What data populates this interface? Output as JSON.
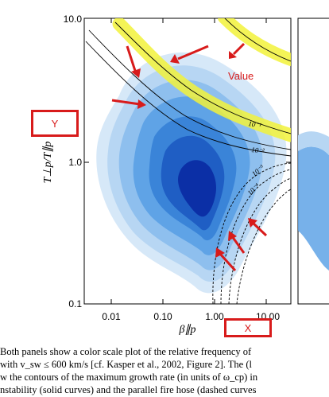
{
  "chart_data": {
    "type": "heatmap",
    "x_scale": "log",
    "y_scale": "log",
    "xlim": [
      0.003,
      30
    ],
    "ylim": [
      0.1,
      10
    ],
    "x_tick_labels": [
      "0.01",
      "0.10",
      "1.00",
      "10.00"
    ],
    "y_tick_labels": [
      "0.1",
      "1.0",
      "10.0"
    ],
    "xlabel": "β∥p",
    "ylabel": "T⊥p/T∥p",
    "contour_labels": [
      "10⁻¹",
      "10⁻²",
      "10⁻³",
      "10⁻⁴"
    ],
    "colors": {
      "density_light": "#cfe4f7",
      "density_mid": "#3f8ee0",
      "density_dark": "#0b2fa6",
      "highlight": "#f2f23a",
      "annotation": "#d81b1b"
    }
  },
  "annotations": {
    "value_label": "Value",
    "y_box_label": "Y",
    "x_box_label": "X"
  },
  "caption": {
    "lines": [
      "Both panels show a color scale plot of the relative frequency of",
      " with v_sw ≤ 600 km/s [cf. Kasper et al., 2002, Figure 2]. The (l",
      "w the contours of the maximum growth rate (in units of ω_cp) in",
      "nstability (solid curves) and the parallel fire hose (dashed curves"
    ]
  }
}
